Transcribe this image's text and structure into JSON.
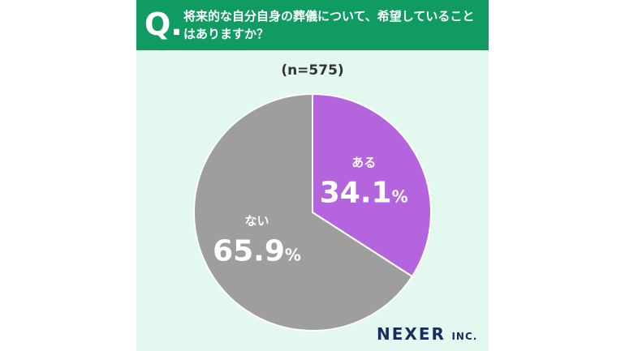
{
  "question": {
    "mark": "Q.",
    "text": "将来的な自分自身の葬儀について、希望していることはありますか？"
  },
  "sample_size": "(n=575)",
  "colors": {
    "header": "#109b62",
    "background": "#e3f8ee",
    "slice_yes": "#b464dc",
    "slice_no": "#9e9e9e"
  },
  "chart_data": {
    "type": "pie",
    "title": "将来的な自分自身の葬儀について、希望していることはありますか？",
    "slices": [
      {
        "label": "ある",
        "value": 34.1,
        "display": "34.1",
        "unit": "%"
      },
      {
        "label": "ない",
        "value": 65.9,
        "display": "65.9",
        "unit": "%"
      }
    ]
  },
  "brand": {
    "name": "NEXER",
    "suffix": "INC."
  }
}
